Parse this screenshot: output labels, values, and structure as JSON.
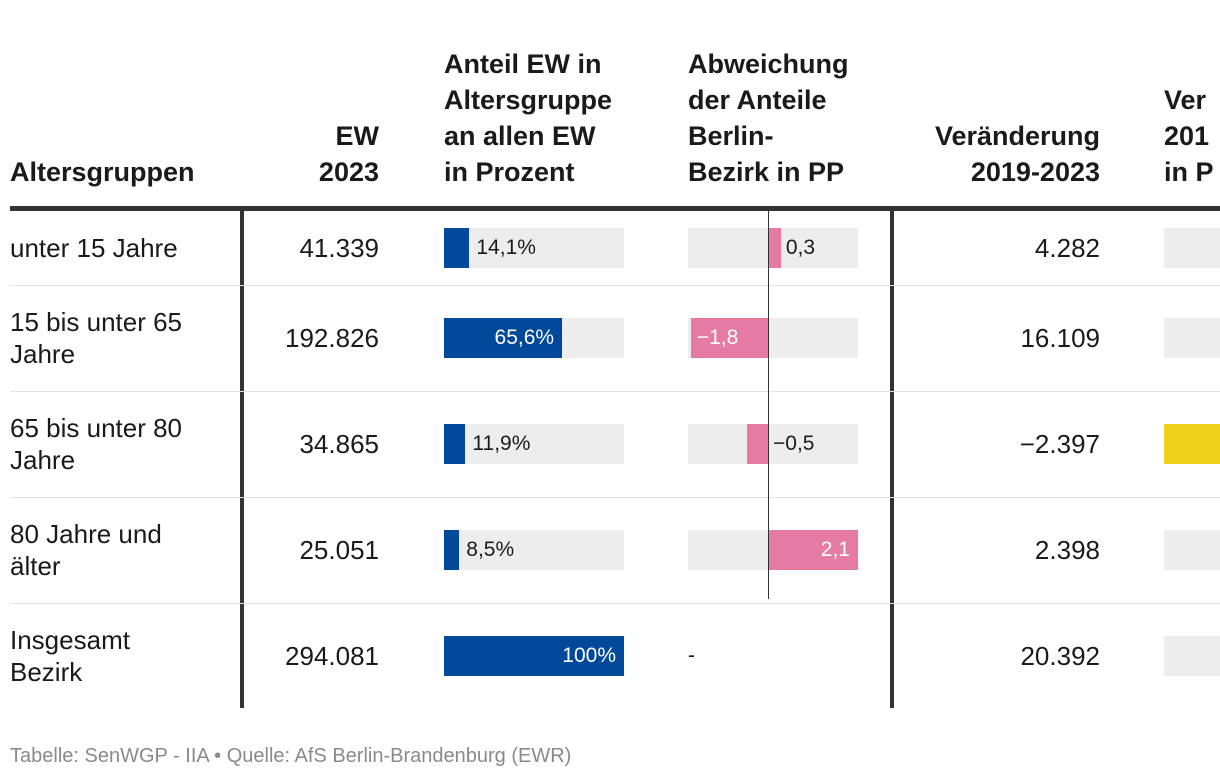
{
  "header": {
    "col1": "Altersgruppen",
    "col2": [
      "EW",
      "2023"
    ],
    "col3": [
      "Anteil EW in",
      "Altersgruppe",
      "an allen EW",
      "in Prozent"
    ],
    "col4": [
      "Abweichung",
      "der Anteile",
      "Berlin-",
      "Bezirk in PP"
    ],
    "col5": [
      "Veränderung",
      "2019-2023"
    ],
    "col6": [
      "Ver",
      "201",
      "in P"
    ]
  },
  "colors": {
    "share_bar": "#004899",
    "deviation_bar": "#e57ba3",
    "change_neg": "#f0d21e",
    "track": "#ededed",
    "rules": "#333333"
  },
  "chart_data": {
    "type": "table",
    "rows": [
      {
        "group": [
          "unter 15 Jahre"
        ],
        "ew_2023": "41.339",
        "share": 14.1,
        "share_label": "14,1%",
        "deviation": 0.3,
        "deviation_label": "0,3",
        "change": "4.282",
        "change_pct_sign": 1
      },
      {
        "group": [
          "15 bis unter 65",
          "Jahre"
        ],
        "ew_2023": "192.826",
        "share": 65.6,
        "share_label": "65,6%",
        "deviation": -1.8,
        "deviation_label": "−1,8",
        "change": "16.109",
        "change_pct_sign": 1
      },
      {
        "group": [
          "65 bis unter 80",
          "Jahre"
        ],
        "ew_2023": "34.865",
        "share": 11.9,
        "share_label": "11,9%",
        "deviation": -0.5,
        "deviation_label": "−0,5",
        "change": "−2.397",
        "change_pct_sign": -1
      },
      {
        "group": [
          "80 Jahre und",
          "älter"
        ],
        "ew_2023": "25.051",
        "share": 8.5,
        "share_label": "8,5%",
        "deviation": 2.1,
        "deviation_label": "2,1",
        "change": "2.398",
        "change_pct_sign": 1
      },
      {
        "group": [
          "Insgesamt",
          "Bezirk"
        ],
        "ew_2023": "294.081",
        "share": 100,
        "share_label": "100%",
        "deviation": null,
        "deviation_label": "-",
        "change": "20.392",
        "change_pct_sign": 1
      }
    ],
    "share_range": [
      0,
      100
    ],
    "deviation_range": [
      -2.1,
      2.1
    ]
  },
  "footer": "Tabelle: SenWGP - IIA • Quelle: AfS Berlin-Brandenburg (EWR)"
}
